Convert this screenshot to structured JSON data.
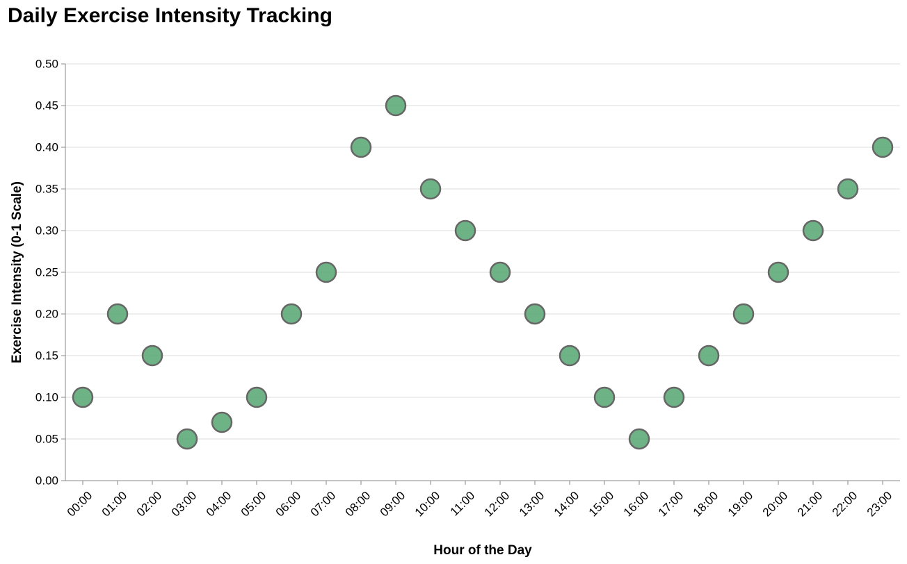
{
  "chart_data": {
    "type": "scatter",
    "title": "Daily Exercise Intensity Tracking",
    "xlabel": "Hour of the Day",
    "ylabel": "Exercise Intensity (0-1 Scale)",
    "x": [
      "00:00",
      "01:00",
      "02:00",
      "03:00",
      "04:00",
      "05:00",
      "06:00",
      "07:00",
      "08:00",
      "09:00",
      "10:00",
      "11:00",
      "12:00",
      "13:00",
      "14:00",
      "15:00",
      "16:00",
      "17:00",
      "18:00",
      "19:00",
      "20:00",
      "21:00",
      "22:00",
      "23:00"
    ],
    "y": [
      0.1,
      0.2,
      0.15,
      0.05,
      0.07,
      0.1,
      0.2,
      0.25,
      0.4,
      0.45,
      0.35,
      0.3,
      0.25,
      0.2,
      0.15,
      0.1,
      0.05,
      0.1,
      0.15,
      0.2,
      0.25,
      0.3,
      0.35,
      0.4
    ],
    "ylim": [
      0,
      0.5
    ],
    "yticks": [
      "0.00",
      "0.05",
      "0.10",
      "0.15",
      "0.20",
      "0.25",
      "0.30",
      "0.35",
      "0.40",
      "0.45",
      "0.50"
    ],
    "grid": true,
    "point_color": "#5aa874",
    "point_stroke": "#666666"
  }
}
